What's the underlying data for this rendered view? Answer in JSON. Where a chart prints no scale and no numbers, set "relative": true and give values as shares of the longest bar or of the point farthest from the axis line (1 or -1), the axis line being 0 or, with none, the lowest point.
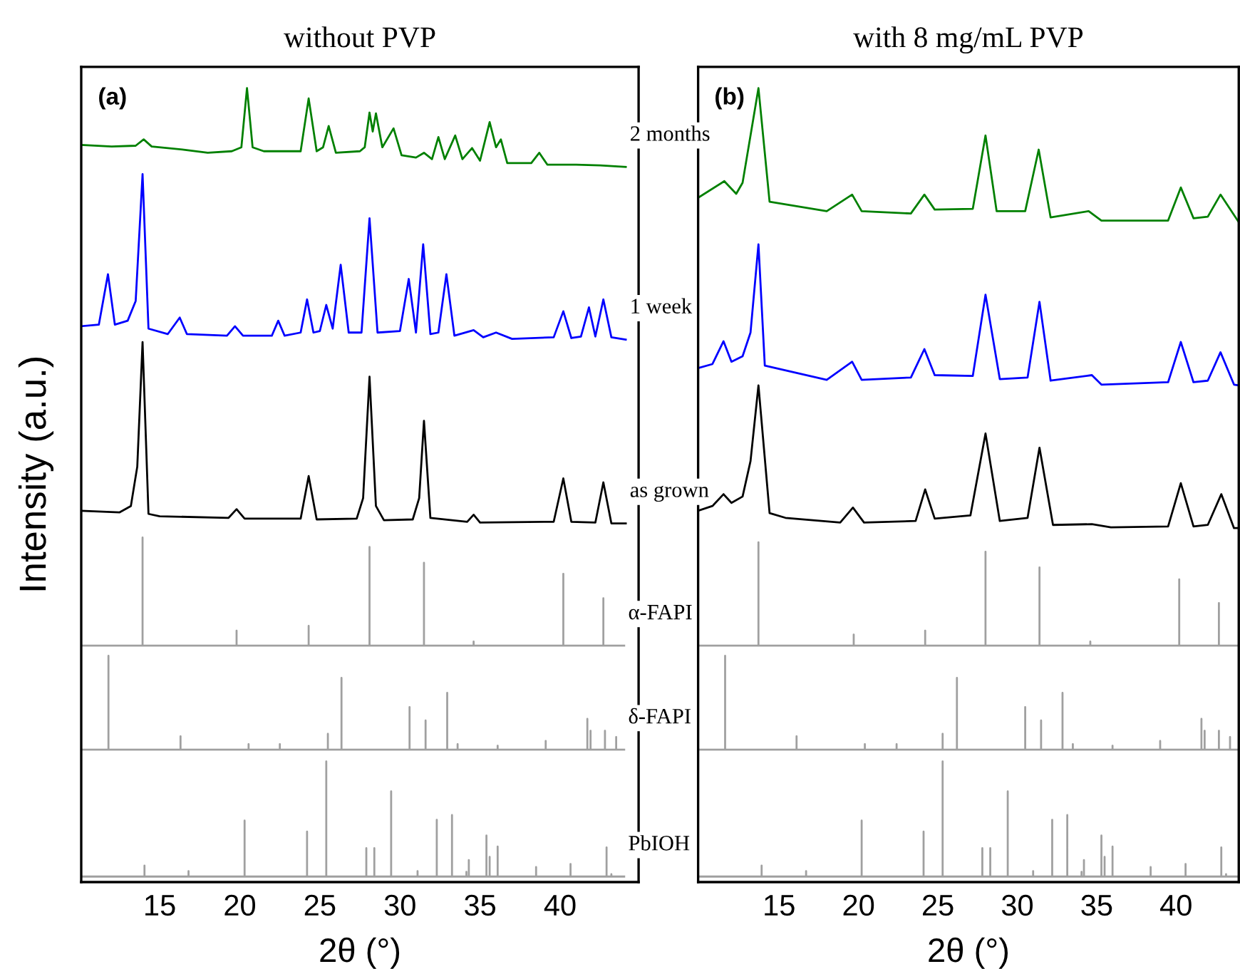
{
  "chart_data": [
    {
      "type": "line",
      "title": "without PVP",
      "xlabel": "2θ (°)",
      "ylabel": "Intensity (a.u.)",
      "annotations": [
        "(a)"
      ],
      "relative": true,
      "xlim": [
        10.1,
        44.9
      ],
      "xticks": [
        15,
        20,
        25,
        30,
        35,
        40
      ],
      "tick_labels": "x",
      "grid": false,
      "legend": false,
      "marker": "none",
      "line_style": "solid",
      "series": [
        {
          "name": "2 months",
          "color": "#008000",
          "x": [
            10.1,
            12,
            13.5,
            14.0,
            14.5,
            16.5,
            18,
            19.5,
            20.1,
            20.45,
            20.8,
            21.5,
            23.8,
            24.3,
            24.8,
            25.2,
            25.55,
            26,
            27.5,
            27.8,
            28.1,
            28.3,
            28.5,
            28.9,
            29.6,
            30.1,
            31,
            31.5,
            32,
            32.4,
            32.8,
            33.45,
            33.9,
            34.5,
            35.0,
            35.6,
            36.0,
            36.3,
            36.7,
            38.2,
            38.7,
            39.2,
            41,
            42.5,
            44.1
          ],
          "values": [
            0.928,
            0.926,
            0.927,
            0.935,
            0.926,
            0.922,
            0.918,
            0.92,
            0.925,
            1.0,
            0.925,
            0.92,
            0.92,
            0.987,
            0.92,
            0.925,
            0.952,
            0.918,
            0.92,
            0.925,
            0.969,
            0.945,
            0.968,
            0.925,
            0.949,
            0.915,
            0.912,
            0.918,
            0.91,
            0.938,
            0.91,
            0.94,
            0.91,
            0.924,
            0.908,
            0.957,
            0.925,
            0.935,
            0.905,
            0.905,
            0.918,
            0.903,
            0.903,
            0.902,
            0.9
          ]
        },
        {
          "name": "1 week",
          "color": "#0000ff",
          "x": [
            10.1,
            11.2,
            11.77,
            12.2,
            13.0,
            13.5,
            13.93,
            14.3,
            15.5,
            16.25,
            16.7,
            19.2,
            19.7,
            20.2,
            22.0,
            22.4,
            22.8,
            23.8,
            24.2,
            24.6,
            25.0,
            25.4,
            25.8,
            26.3,
            26.8,
            27.6,
            28.1,
            28.6,
            30.0,
            30.55,
            31.0,
            31.45,
            31.9,
            32.4,
            32.9,
            33.4,
            34.6,
            35.2,
            36.0,
            37.0,
            39.6,
            40.2,
            40.7,
            41.3,
            41.8,
            42.2,
            42.7,
            43.2,
            44.1
          ],
          "values": [
            0.698,
            0.7,
            0.764,
            0.7,
            0.705,
            0.73,
            0.891,
            0.695,
            0.688,
            0.709,
            0.688,
            0.686,
            0.698,
            0.686,
            0.686,
            0.705,
            0.686,
            0.69,
            0.732,
            0.69,
            0.692,
            0.725,
            0.695,
            0.776,
            0.69,
            0.69,
            0.835,
            0.69,
            0.692,
            0.758,
            0.69,
            0.802,
            0.688,
            0.69,
            0.764,
            0.686,
            0.693,
            0.684,
            0.69,
            0.682,
            0.684,
            0.717,
            0.683,
            0.685,
            0.722,
            0.685,
            0.732,
            0.684,
            0.681
          ]
        },
        {
          "name": "as grown",
          "color": "#000000",
          "x": [
            10.1,
            12.5,
            13.2,
            13.6,
            13.93,
            14.3,
            15.0,
            19.3,
            19.8,
            20.3,
            23.8,
            24.3,
            24.8,
            27.3,
            27.7,
            28.1,
            28.5,
            29,
            30.8,
            31.2,
            31.5,
            31.9,
            34.2,
            34.6,
            35.0,
            39.6,
            40.2,
            40.7,
            42.2,
            42.7,
            43.2,
            44.1
          ],
          "values": [
            0.464,
            0.462,
            0.47,
            0.52,
            0.678,
            0.46,
            0.457,
            0.455,
            0.466,
            0.454,
            0.454,
            0.508,
            0.453,
            0.454,
            0.48,
            0.634,
            0.47,
            0.452,
            0.453,
            0.48,
            0.578,
            0.455,
            0.45,
            0.459,
            0.449,
            0.45,
            0.505,
            0.45,
            0.449,
            0.5,
            0.448,
            0.448
          ]
        },
        {
          "name": "α-FAPI",
          "color": "#a0a0a0",
          "x": [
            10.1,
            13.93,
            13.93,
            13.93,
            19.8,
            19.8,
            19.8,
            24.3,
            24.3,
            24.3,
            28.1,
            28.1,
            28.1,
            31.5,
            31.5,
            31.5,
            34.6,
            34.6,
            34.6,
            40.2,
            40.2,
            40.2,
            42.7,
            42.7,
            42.7,
            44.0
          ],
          "values": [
            0.293,
            0.293,
            0.43,
            0.293,
            0.293,
            0.312,
            0.293,
            0.293,
            0.318,
            0.293,
            0.293,
            0.418,
            0.293,
            0.293,
            0.398,
            0.293,
            0.293,
            0.298,
            0.293,
            0.293,
            0.384,
            0.293,
            0.293,
            0.353,
            0.293,
            0.293
          ]
        },
        {
          "name": "δ-FAPI",
          "color": "#a0a0a0",
          "x": [
            10.1,
            11.8,
            11.8,
            11.8,
            16.3,
            16.3,
            16.3,
            20.55,
            20.55,
            20.55,
            22.5,
            22.5,
            22.5,
            25.5,
            25.5,
            25.5,
            26.35,
            26.35,
            26.35,
            30.6,
            30.6,
            30.6,
            31.6,
            31.6,
            31.6,
            32.95,
            32.95,
            32.95,
            33.6,
            33.6,
            33.6,
            36.1,
            36.1,
            36.1,
            39.1,
            39.1,
            39.1,
            41.7,
            41.7,
            41.7,
            41.9,
            41.9,
            41.9,
            42.8,
            42.8,
            42.8,
            43.5,
            43.5,
            43.5,
            44.0
          ],
          "values": [
            0.161,
            0.161,
            0.28,
            0.161,
            0.161,
            0.178,
            0.161,
            0.161,
            0.168,
            0.161,
            0.161,
            0.168,
            0.161,
            0.161,
            0.181,
            0.161,
            0.161,
            0.252,
            0.161,
            0.161,
            0.215,
            0.161,
            0.161,
            0.198,
            0.161,
            0.161,
            0.233,
            0.161,
            0.161,
            0.168,
            0.161,
            0.161,
            0.166,
            0.161,
            0.161,
            0.172,
            0.161,
            0.161,
            0.2,
            0.161,
            0.161,
            0.185,
            0.161,
            0.161,
            0.185,
            0.161,
            0.161,
            0.177,
            0.161,
            0.161
          ]
        },
        {
          "name": "PbIOH",
          "color": "#a0a0a0",
          "x": [
            10.1,
            14.05,
            14.05,
            14.05,
            16.8,
            16.8,
            16.8,
            20.3,
            20.3,
            20.3,
            24.2,
            24.2,
            24.2,
            25.4,
            25.4,
            25.4,
            27.9,
            27.9,
            27.9,
            28.4,
            28.4,
            28.4,
            29.45,
            29.45,
            29.45,
            31.1,
            31.1,
            31.1,
            32.3,
            32.3,
            32.3,
            33.25,
            33.25,
            33.25,
            34.15,
            34.15,
            34.15,
            34.3,
            34.3,
            34.3,
            35.4,
            35.4,
            35.4,
            35.6,
            35.6,
            35.6,
            36.1,
            36.1,
            36.1,
            38.5,
            38.5,
            38.5,
            40.65,
            40.65,
            40.65,
            42.9,
            42.9,
            42.9,
            43.2,
            43.2,
            43.2,
            44.0
          ],
          "values": [
            0,
            0,
            0.014,
            0,
            0,
            0.007,
            0,
            0,
            0.071,
            0,
            0,
            0.057,
            0,
            0,
            0.146,
            0,
            0,
            0.036,
            0,
            0,
            0.036,
            0,
            0,
            0.108,
            0,
            0,
            0.007,
            0,
            0,
            0.072,
            0,
            0,
            0.078,
            0,
            0,
            0.006,
            0,
            0,
            0.021,
            0,
            0,
            0.052,
            0,
            0,
            0.025,
            0,
            0,
            0.038,
            0,
            0,
            0.012,
            0,
            0,
            0.016,
            0,
            0,
            0.037,
            0,
            0,
            0.003,
            0,
            0
          ]
        }
      ]
    },
    {
      "type": "line",
      "title": "with 8 mg/mL PVP",
      "xlabel": "2θ (°)",
      "annotations": [
        "(b)"
      ],
      "relative": true,
      "xlim": [
        9.9,
        43.95
      ],
      "xticks": [
        15,
        20,
        25,
        30,
        35,
        40
      ],
      "tick_labels": "x",
      "grid": false,
      "legend": false,
      "marker": "none",
      "line_style": "solid",
      "series": [
        {
          "color": "#008000",
          "x": [
            9.9,
            11.55,
            12.3,
            12.7,
            13.7,
            14.4,
            18,
            19.6,
            20.2,
            23.3,
            24.15,
            24.8,
            27.2,
            28.0,
            28.7,
            30.5,
            31.35,
            32.1,
            34.5,
            35.3,
            39.5,
            40.3,
            41.1,
            42.0,
            42.8,
            43.95
          ],
          "values": [
            0.861,
            0.882,
            0.866,
            0.88,
            1.0,
            0.856,
            0.844,
            0.865,
            0.844,
            0.841,
            0.865,
            0.846,
            0.847,
            0.94,
            0.844,
            0.844,
            0.922,
            0.836,
            0.844,
            0.832,
            0.832,
            0.874,
            0.835,
            0.837,
            0.865,
            0.83
          ]
        },
        {
          "color": "#0000ff",
          "x": [
            9.9,
            10.8,
            11.5,
            12.0,
            12.7,
            13.2,
            13.7,
            14.1,
            18,
            19.6,
            20.2,
            23.3,
            24.15,
            24.8,
            27.2,
            28.0,
            28.9,
            30.65,
            31.4,
            32.1,
            34.7,
            35.3,
            39.5,
            40.3,
            41.1,
            42.0,
            42.8,
            43.65,
            43.95
          ],
          "values": [
            0.645,
            0.65,
            0.679,
            0.653,
            0.66,
            0.69,
            0.802,
            0.648,
            0.63,
            0.653,
            0.63,
            0.633,
            0.669,
            0.636,
            0.635,
            0.738,
            0.631,
            0.633,
            0.729,
            0.629,
            0.636,
            0.624,
            0.627,
            0.678,
            0.627,
            0.629,
            0.665,
            0.624,
            0.623
          ]
        },
        {
          "color": "#000000",
          "x": [
            9.9,
            10.8,
            11.5,
            12.0,
            12.7,
            13.2,
            13.7,
            14.4,
            15.4,
            18.85,
            19.65,
            20.35,
            23.6,
            24.2,
            24.8,
            27.05,
            28.0,
            28.9,
            30.65,
            31.4,
            32.25,
            34.7,
            35.9,
            39.5,
            40.3,
            41.1,
            42.0,
            42.85,
            43.65,
            43.95
          ],
          "values": [
            0.464,
            0.47,
            0.485,
            0.474,
            0.482,
            0.527,
            0.623,
            0.461,
            0.455,
            0.449,
            0.468,
            0.449,
            0.451,
            0.491,
            0.454,
            0.458,
            0.562,
            0.451,
            0.455,
            0.544,
            0.446,
            0.447,
            0.443,
            0.444,
            0.499,
            0.444,
            0.446,
            0.485,
            0.442,
            0.442
          ]
        },
        {
          "color": "#a0a0a0",
          "x": [
            9.9,
            13.7,
            13.7,
            13.7,
            19.7,
            19.7,
            19.7,
            24.2,
            24.2,
            24.2,
            28.0,
            28.0,
            28.0,
            31.4,
            31.4,
            31.4,
            34.6,
            34.6,
            34.6,
            40.2,
            40.2,
            40.2,
            42.7,
            42.7,
            42.7,
            43.95
          ],
          "values": [
            0.293,
            0.293,
            0.424,
            0.293,
            0.293,
            0.307,
            0.293,
            0.293,
            0.312,
            0.293,
            0.293,
            0.412,
            0.293,
            0.293,
            0.392,
            0.293,
            0.293,
            0.298,
            0.293,
            0.293,
            0.377,
            0.293,
            0.293,
            0.347,
            0.293,
            0.293
          ]
        },
        {
          "color": "#a0a0a0",
          "x": [
            9.9,
            11.6,
            11.6,
            11.6,
            16.1,
            16.1,
            16.1,
            20.4,
            20.4,
            20.4,
            22.4,
            22.4,
            22.4,
            25.3,
            25.3,
            25.3,
            26.2,
            26.2,
            26.2,
            30.5,
            30.5,
            30.5,
            31.5,
            31.5,
            31.5,
            32.85,
            32.85,
            32.85,
            33.5,
            33.5,
            33.5,
            36.0,
            36.0,
            36.0,
            39.0,
            39.0,
            39.0,
            41.6,
            41.6,
            41.6,
            41.8,
            41.8,
            41.8,
            42.7,
            42.7,
            42.7,
            43.4,
            43.4,
            43.4,
            43.95
          ],
          "values": [
            0.161,
            0.161,
            0.28,
            0.161,
            0.161,
            0.178,
            0.161,
            0.161,
            0.168,
            0.161,
            0.161,
            0.168,
            0.161,
            0.161,
            0.181,
            0.161,
            0.161,
            0.252,
            0.161,
            0.161,
            0.215,
            0.161,
            0.161,
            0.198,
            0.161,
            0.161,
            0.233,
            0.161,
            0.161,
            0.168,
            0.161,
            0.161,
            0.166,
            0.161,
            0.161,
            0.172,
            0.161,
            0.161,
            0.2,
            0.161,
            0.161,
            0.185,
            0.161,
            0.161,
            0.185,
            0.161,
            0.161,
            0.177,
            0.161,
            0.161
          ]
        },
        {
          "color": "#a0a0a0",
          "x": [
            9.9,
            13.9,
            13.9,
            13.9,
            16.7,
            16.7,
            16.7,
            20.2,
            20.2,
            20.2,
            24.1,
            24.1,
            24.1,
            25.3,
            25.3,
            25.3,
            27.8,
            27.8,
            27.8,
            28.3,
            28.3,
            28.3,
            29.4,
            29.4,
            29.4,
            31.0,
            31.0,
            31.0,
            32.2,
            32.2,
            32.2,
            33.15,
            33.15,
            33.15,
            34.05,
            34.05,
            34.05,
            34.2,
            34.2,
            34.2,
            35.3,
            35.3,
            35.3,
            35.5,
            35.5,
            35.5,
            36.0,
            36.0,
            36.0,
            38.4,
            38.4,
            38.4,
            40.6,
            40.6,
            40.6,
            42.85,
            42.85,
            42.85,
            43.15,
            43.15,
            43.15,
            43.95
          ],
          "values": [
            0,
            0,
            0.014,
            0,
            0,
            0.007,
            0,
            0,
            0.071,
            0,
            0,
            0.057,
            0,
            0,
            0.146,
            0,
            0,
            0.036,
            0,
            0,
            0.036,
            0,
            0,
            0.108,
            0,
            0,
            0.007,
            0,
            0,
            0.072,
            0,
            0,
            0.078,
            0,
            0,
            0.006,
            0,
            0,
            0.021,
            0,
            0,
            0.052,
            0,
            0,
            0.025,
            0,
            0,
            0.038,
            0,
            0,
            0.012,
            0,
            0,
            0.016,
            0,
            0,
            0.037,
            0,
            0,
            0.003,
            0,
            0
          ]
        }
      ]
    }
  ]
}
